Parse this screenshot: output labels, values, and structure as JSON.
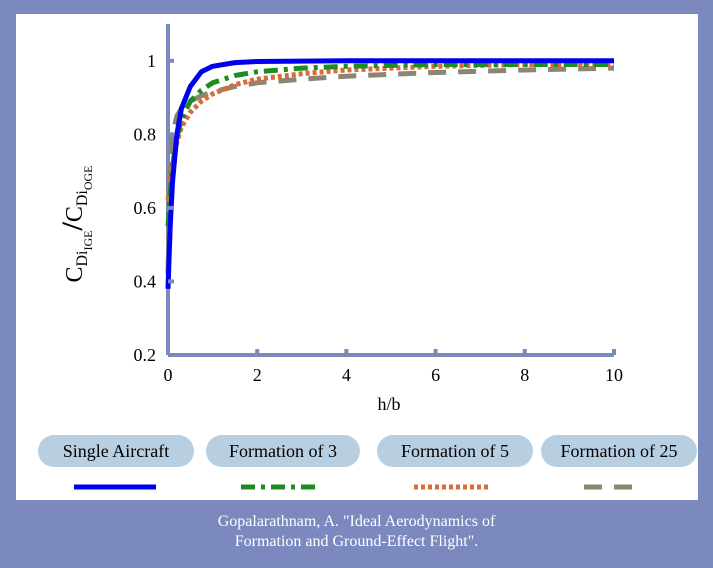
{
  "chart_data": {
    "type": "line",
    "xlabel": "h/b",
    "ylabel": {
      "numerator_base": "C",
      "numerator_sub": "Di",
      "numerator_subsub": "IGE",
      "separator": "/",
      "denominator_base": "C",
      "denominator_sub": "Di",
      "denominator_subsub": "OGE"
    },
    "xlim": [
      0,
      10
    ],
    "ylim": [
      0.2,
      1.1
    ],
    "xticks": [
      0,
      2,
      4,
      6,
      8,
      10
    ],
    "yticks": [
      0.2,
      0.4,
      0.6,
      0.8,
      1
    ],
    "xtick_labels": [
      "0",
      "2",
      "4",
      "6",
      "8",
      "10"
    ],
    "ytick_labels": [
      "0.2",
      "0.4",
      "0.6",
      "0.8",
      "1"
    ],
    "grid": false,
    "legend_position": "bottom",
    "series": [
      {
        "name": "Single Aircraft",
        "color": "#0000ee",
        "dash": "solid",
        "x": [
          0.0,
          0.05,
          0.1,
          0.2,
          0.3,
          0.5,
          0.75,
          1.0,
          1.5,
          2.0,
          3.0,
          4.0,
          6.0,
          8.0,
          10.0
        ],
        "y": [
          0.38,
          0.55,
          0.67,
          0.8,
          0.87,
          0.93,
          0.97,
          0.985,
          0.995,
          0.998,
          0.999,
          1.0,
          1.0,
          1.0,
          1.0
        ]
      },
      {
        "name": "Formation of 3",
        "color": "#1e8c1e",
        "dash": "dashdot",
        "x": [
          0.0,
          0.05,
          0.1,
          0.2,
          0.3,
          0.5,
          0.75,
          1.0,
          1.5,
          2.0,
          3.0,
          4.0,
          6.0,
          8.0,
          10.0
        ],
        "y": [
          0.55,
          0.64,
          0.71,
          0.79,
          0.84,
          0.89,
          0.92,
          0.94,
          0.96,
          0.97,
          0.98,
          0.985,
          0.99,
          0.99,
          0.99
        ]
      },
      {
        "name": "Formation of 5",
        "color": "#d96a3a",
        "dash": "dotted",
        "x": [
          0.0,
          0.05,
          0.1,
          0.2,
          0.3,
          0.5,
          0.75,
          1.0,
          1.5,
          2.0,
          3.0,
          4.0,
          6.0,
          8.0,
          10.0
        ],
        "y": [
          0.62,
          0.68,
          0.72,
          0.78,
          0.82,
          0.86,
          0.89,
          0.91,
          0.935,
          0.95,
          0.965,
          0.975,
          0.985,
          0.99,
          0.99
        ]
      },
      {
        "name": "Formation of 25",
        "color": "#8a8672",
        "dash": "longdash",
        "x": [
          0.0,
          0.05,
          0.1,
          0.2,
          0.3,
          0.5,
          0.75,
          1.0,
          1.5,
          2.0,
          3.0,
          4.0,
          6.0,
          8.0,
          10.0
        ],
        "y": [
          0.42,
          0.7,
          0.8,
          0.85,
          0.87,
          0.89,
          0.905,
          0.915,
          0.93,
          0.94,
          0.95,
          0.958,
          0.968,
          0.975,
          0.98
        ]
      }
    ]
  },
  "caption": {
    "line1": "Gopalarathnam, A. \"Ideal Aerodynamics of",
    "line2": "Formation and Ground-Effect Flight\"."
  }
}
